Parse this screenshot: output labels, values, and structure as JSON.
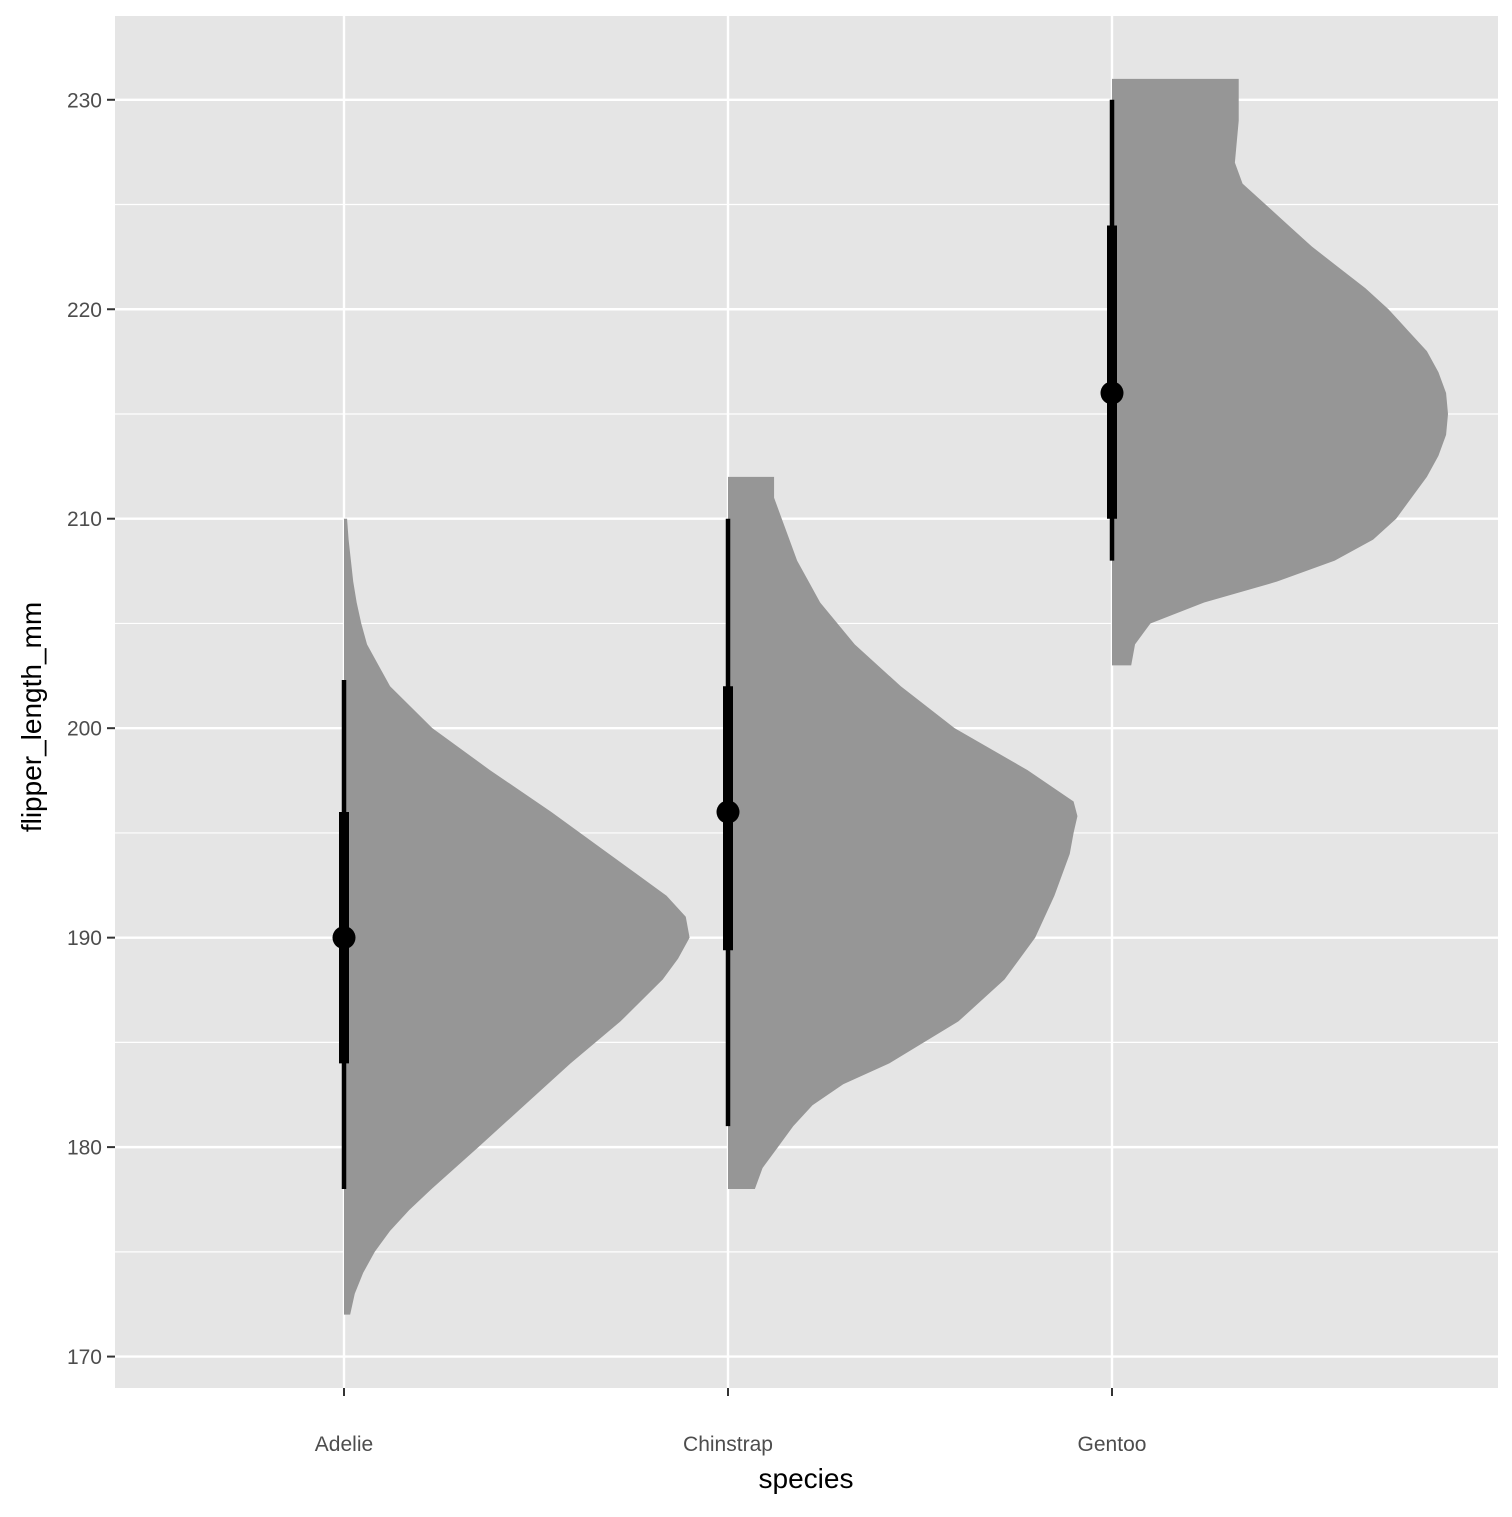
{
  "chart_data": {
    "type": "halfeye",
    "xlabel": "species",
    "ylabel": "flipper_length_mm",
    "ylim": [
      168.5,
      234
    ],
    "y_major_ticks": [
      170,
      180,
      190,
      200,
      210,
      220,
      230
    ],
    "y_minor_ticks": [
      175,
      185,
      195,
      205,
      215,
      225
    ],
    "categories": [
      "Adelie",
      "Chinstrap",
      "Gentoo"
    ],
    "grid": true,
    "colors": {
      "panel_background": "#e5e5e5",
      "grid": "#ffffff",
      "density_fill": "#969696",
      "interval": "#000000",
      "text": "#4d4d4d"
    },
    "series": [
      {
        "category": "Adelie",
        "median": 190,
        "interval_66": [
          184,
          196
        ],
        "interval_95": [
          178,
          202.3
        ],
        "density": {
          "y": [
            172,
            173,
            174,
            175,
            176,
            177,
            178,
            180,
            182,
            184,
            186,
            188,
            189,
            190,
            191,
            192,
            194,
            196,
            198,
            200,
            202,
            204,
            205,
            206,
            207,
            208,
            209,
            210
          ],
          "width": [
            0.016,
            0.028,
            0.05,
            0.08,
            0.12,
            0.17,
            0.228,
            0.35,
            0.47,
            0.59,
            0.72,
            0.83,
            0.87,
            0.9,
            0.89,
            0.84,
            0.69,
            0.54,
            0.38,
            0.23,
            0.12,
            0.06,
            0.045,
            0.033,
            0.024,
            0.018,
            0.012,
            0.008
          ]
        }
      },
      {
        "category": "Chinstrap",
        "median": 196,
        "interval_66": [
          189.4,
          202
        ],
        "interval_95": [
          181,
          210
        ],
        "density": {
          "y": [
            178,
            179,
            180,
            181,
            182,
            183,
            184,
            186,
            188,
            190,
            192,
            194,
            195,
            195.8,
            196.5,
            198,
            200,
            202,
            204,
            206,
            207,
            208,
            209,
            210,
            211,
            212
          ],
          "width": [
            0.07,
            0.09,
            0.13,
            0.17,
            0.22,
            0.3,
            0.42,
            0.6,
            0.72,
            0.8,
            0.85,
            0.89,
            0.9,
            0.91,
            0.9,
            0.78,
            0.59,
            0.45,
            0.33,
            0.24,
            0.21,
            0.18,
            0.16,
            0.14,
            0.12,
            0.12
          ]
        }
      },
      {
        "category": "Gentoo",
        "median": 216,
        "interval_66": [
          210,
          224
        ],
        "interval_95": [
          208,
          230
        ],
        "density": {
          "y": [
            203,
            204,
            205,
            206,
            207,
            208,
            209,
            210,
            211,
            212,
            213,
            214,
            215,
            216,
            217,
            218,
            219,
            220,
            221,
            222,
            223,
            224,
            225,
            226,
            227,
            228,
            229,
            230,
            231
          ],
          "width": [
            0.05,
            0.06,
            0.1,
            0.24,
            0.43,
            0.58,
            0.68,
            0.74,
            0.78,
            0.82,
            0.85,
            0.87,
            0.875,
            0.87,
            0.85,
            0.82,
            0.77,
            0.72,
            0.66,
            0.59,
            0.52,
            0.46,
            0.4,
            0.34,
            0.32,
            0.325,
            0.33,
            0.33,
            0.33
          ]
        }
      }
    ]
  }
}
